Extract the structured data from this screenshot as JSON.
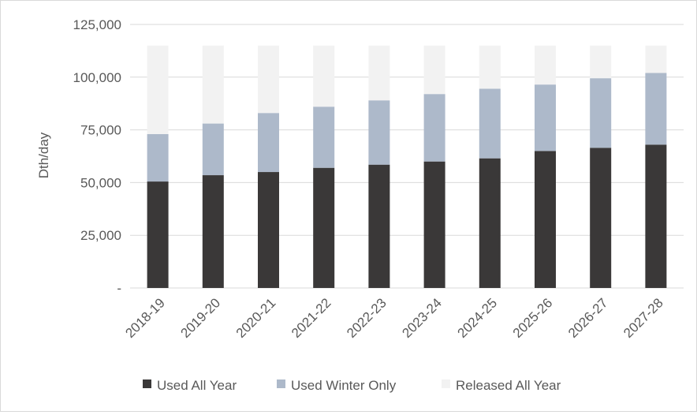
{
  "chart_data": {
    "type": "bar",
    "stacked": true,
    "title": "",
    "xlabel": "",
    "ylabel": "Dth/day",
    "ylim": [
      0,
      125000
    ],
    "yticks": [
      0,
      25000,
      50000,
      75000,
      100000,
      125000
    ],
    "ytick_labels": [
      "-",
      "25,000",
      "50,000",
      "75,000",
      "100,000",
      "125,000"
    ],
    "grid": true,
    "legend_position": "bottom",
    "categories": [
      "2018-19",
      "2019-20",
      "2020-21",
      "2021-22",
      "2022-23",
      "2023-24",
      "2024-25",
      "2025-26",
      "2026-27",
      "2027-28"
    ],
    "series": [
      {
        "name": "Used All Year",
        "color": "#3a3838",
        "values": [
          50500,
          53500,
          55000,
          57000,
          58500,
          60000,
          61500,
          65000,
          66500,
          68000
        ]
      },
      {
        "name": "Used Winter Only",
        "color": "#adb9ca",
        "values": [
          22500,
          24500,
          28000,
          29000,
          30500,
          32000,
          33000,
          31500,
          33000,
          34000
        ]
      },
      {
        "name": "Released All Year",
        "color": "#f2f2f2",
        "values": [
          42000,
          37000,
          32000,
          29000,
          26000,
          23000,
          20500,
          18500,
          15500,
          13000
        ]
      }
    ]
  }
}
